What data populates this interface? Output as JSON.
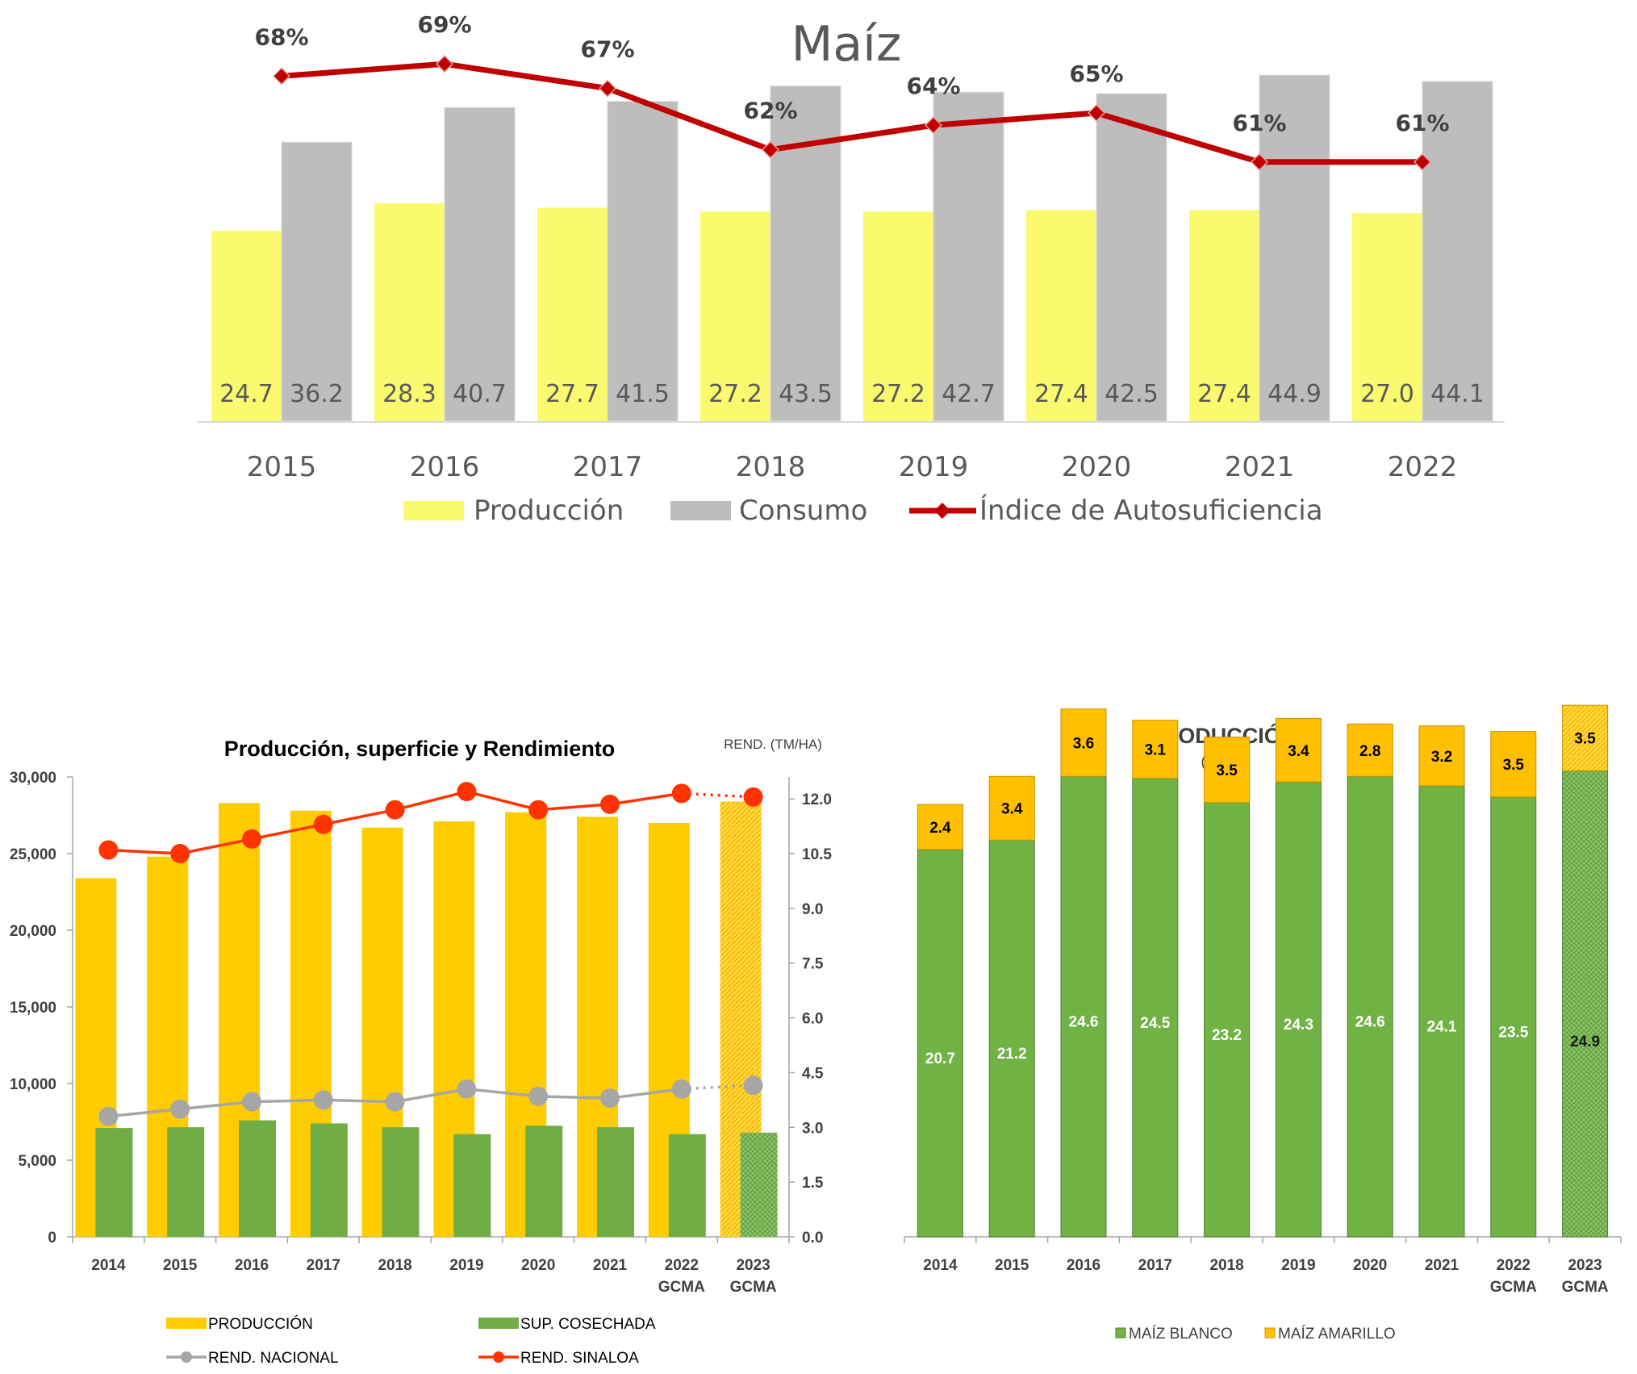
{
  "colors": {
    "produccion_light": "#FAFA6E",
    "consumo": "#BDBDBD",
    "indice_line": "#C00000",
    "produccion_gold": "#FFCC00",
    "sup_green": "#70AD47",
    "rend_nacional": "#A6A6A6",
    "rend_sinaloa": "#FF3300",
    "maiz_blanco": "#70B244",
    "maiz_amarillo": "#FFC000"
  },
  "chart_data": [
    {
      "type": "bar",
      "title": "Maíz",
      "categories": [
        "2015",
        "2016",
        "2017",
        "2018",
        "2019",
        "2020",
        "2021",
        "2022"
      ],
      "series": [
        {
          "name": "Producción",
          "values": [
            24.7,
            28.3,
            27.7,
            27.2,
            27.2,
            27.4,
            27.4,
            27.0
          ],
          "labels": [
            "24.7",
            "28.3",
            "27.7",
            "27.2",
            "27.2",
            "27.4",
            "27.4",
            "27.0"
          ]
        },
        {
          "name": "Consumo",
          "values": [
            36.2,
            40.7,
            41.5,
            43.5,
            42.7,
            42.5,
            44.9,
            44.1
          ],
          "labels": [
            "36.2",
            "40.7",
            "41.5",
            "43.5",
            "42.7",
            "42.5",
            "44.9",
            "44.1"
          ]
        },
        {
          "name": "Índice de Autosuficiencia",
          "type": "line",
          "values": [
            68,
            69,
            67,
            62,
            64,
            65,
            61,
            61
          ],
          "labels": [
            "68%",
            "69%",
            "67%",
            "62%",
            "64%",
            "65%",
            "61%",
            "61%"
          ]
        }
      ],
      "legend": [
        "Producción",
        "Consumo",
        "Índice de Autosuficiencia"
      ],
      "legend_position": "bottom"
    },
    {
      "type": "bar",
      "title": "Producción, superficie y Rendimiento",
      "y2_label": "REND. (TM/HA)",
      "categories": [
        [
          "2014"
        ],
        [
          "2015"
        ],
        [
          "2016"
        ],
        [
          "2017"
        ],
        [
          "2018"
        ],
        [
          "2019"
        ],
        [
          "2020"
        ],
        [
          "2021"
        ],
        [
          "2022",
          "GCMA"
        ],
        [
          "2023",
          "GCMA"
        ]
      ],
      "y_ticks": [
        "0",
        "5,000",
        "10,000",
        "15,000",
        "20,000",
        "25,000",
        "30,000"
      ],
      "y_lim": [
        0,
        30000
      ],
      "y2_ticks": [
        "0.0",
        "1.5",
        "3.0",
        "4.5",
        "6.0",
        "7.5",
        "9.0",
        "10.5",
        "12.0"
      ],
      "y2_lim": [
        0,
        12.6
      ],
      "series": [
        {
          "name": "PRODUCCIÓN",
          "values": [
            23400,
            24800,
            28300,
            27800,
            26700,
            27100,
            27700,
            27400,
            27000,
            28400
          ],
          "axis": "left"
        },
        {
          "name": "SUP. COSECHADA",
          "values": [
            7100,
            7150,
            7600,
            7400,
            7150,
            6700,
            7250,
            7150,
            6700,
            6800
          ],
          "axis": "left"
        },
        {
          "name": "REND. NACIONAL",
          "values": [
            3.3,
            3.5,
            3.7,
            3.75,
            3.7,
            4.05,
            3.85,
            3.8,
            4.05,
            4.15
          ],
          "axis": "right"
        },
        {
          "name": "REND. SINALOA",
          "values": [
            10.6,
            10.5,
            10.9,
            11.3,
            11.7,
            12.2,
            11.7,
            11.85,
            12.15,
            12.05
          ],
          "axis": "right"
        }
      ],
      "projected": [
        "2023 GCMA"
      ],
      "legend": [
        "PRODUCCIÓN",
        "SUP. COSECHADA",
        "REND. NACIONAL",
        "REND. SINALOA"
      ],
      "legend_position": "bottom"
    },
    {
      "type": "bar",
      "stacked": true,
      "title": "PRODUCCIÓN",
      "subtitle": "(MTM)",
      "categories": [
        [
          "2014"
        ],
        [
          "2015"
        ],
        [
          "2016"
        ],
        [
          "2017"
        ],
        [
          "2018"
        ],
        [
          "2019"
        ],
        [
          "2020"
        ],
        [
          "2021"
        ],
        [
          "2022",
          "GCMA"
        ],
        [
          "2023",
          "GCMA"
        ]
      ],
      "series": [
        {
          "name": "MAÍZ BLANCO",
          "values": [
            20.7,
            21.2,
            24.6,
            24.5,
            23.2,
            24.3,
            24.6,
            24.1,
            23.5,
            24.9
          ],
          "labels": [
            "20.7",
            "21.2",
            "24.6",
            "24.5",
            "23.2",
            "24.3",
            "24.6",
            "24.1",
            "23.5",
            "24.9"
          ]
        },
        {
          "name": "MAÍZ AMARILLO",
          "values": [
            2.4,
            3.4,
            3.6,
            3.1,
            3.5,
            3.4,
            2.8,
            3.2,
            3.5,
            3.5
          ],
          "labels": [
            "2.4",
            "3.4",
            "3.6",
            "3.1",
            "3.5",
            "3.4",
            "2.8",
            "3.2",
            "3.5",
            "3.5"
          ]
        }
      ],
      "projected": [
        "2023 GCMA"
      ],
      "legend": [
        "MAÍZ BLANCO",
        "MAÍZ AMARILLO"
      ],
      "legend_position": "bottom"
    }
  ]
}
